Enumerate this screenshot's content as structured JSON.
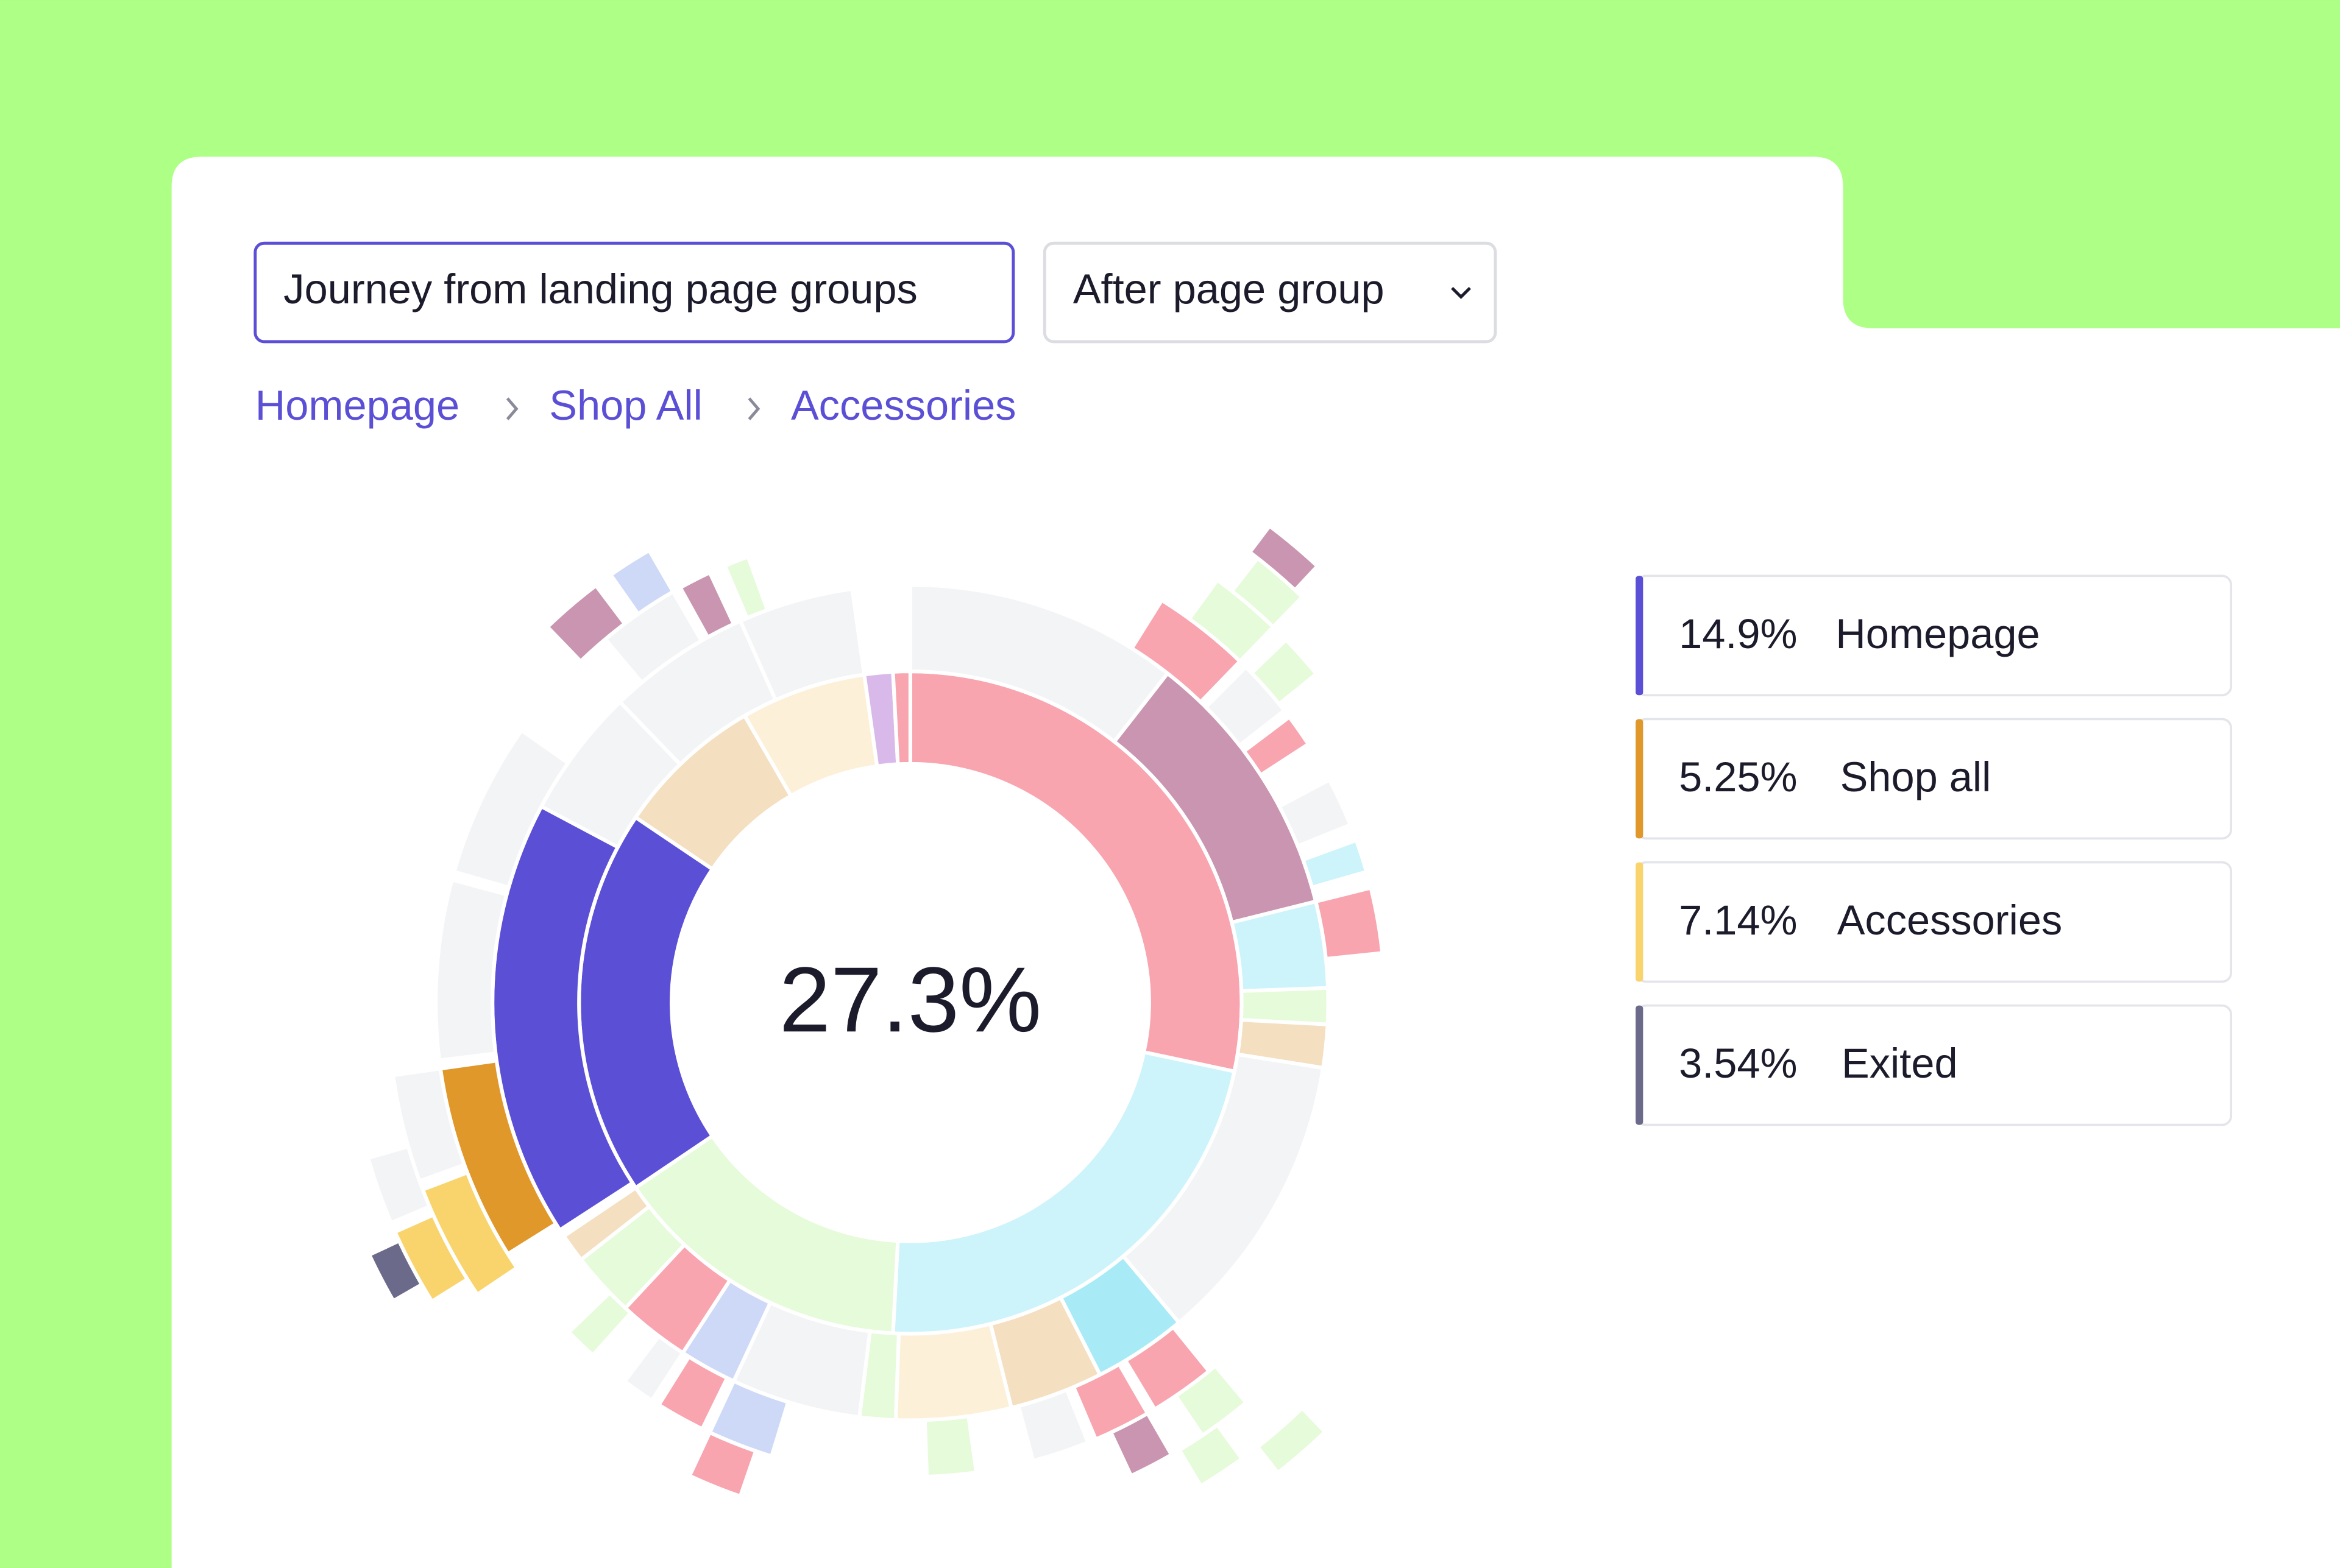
{
  "controls": {
    "journey_button": "Journey from landing page groups",
    "group_select": "After page group"
  },
  "breadcrumb": [
    "Homepage",
    "Shop All",
    "Accessories"
  ],
  "center_value": "27.3%",
  "legend": [
    {
      "value": "14.9%",
      "label": "Homepage"
    },
    {
      "value": "5.25%",
      "label": "Shop all"
    },
    {
      "value": "7.14%",
      "label": "Accessories"
    },
    {
      "value": "3.54%",
      "label": "Exited"
    }
  ]
}
